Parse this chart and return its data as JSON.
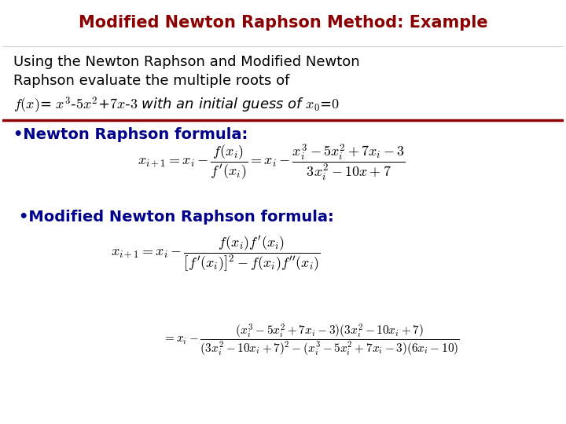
{
  "title": "Modified Newton Raphson Method: Example",
  "title_color": "#8B0000",
  "background_color": "#FFFFFF",
  "separator_color": "#8B0000",
  "bullet_color": "#00008B",
  "text_color": "#000000",
  "intro_line1": "Using the Newton Raphson and Modified Newton",
  "intro_line2": "Raphson evaluate the multiple roots of",
  "nr_label": "•Newton Raphson formula:",
  "mnr_label": "•Modified Newton Raphson formula:",
  "nr_formula": "$x_{i+1} = x_i - \\dfrac{f(x_i)}{f^{\\prime}(x_i)} = x_i - \\dfrac{x_i^3 - 5x_i^2 + 7x_i - 3}{3x_i^2 - 10x + 7}$",
  "mnr_formula1": "$x_{i+1} = x_i - \\dfrac{f(x_i)f^{\\prime}(x_i)}{\\left[f^{\\prime}(x_i)\\right]^2 - f(x_i)f^{\\prime\\prime}(x_i)}$",
  "mnr_formula2": "$= x_i - \\dfrac{(x_i^3 - 5x_i^2 + 7x_i - 3)(3x_i^2 - 10x_i + 7)}{(3x_i^2 - 10x_i + 7)^2 - (x_i^3 - 5x_i^2 + 7x_i - 3)(6x_i - 10)}$",
  "title_fontsize": 15,
  "body_fontsize": 13,
  "bullet_fontsize": 14,
  "formula_fontsize": 13,
  "formula2_fontsize": 11
}
